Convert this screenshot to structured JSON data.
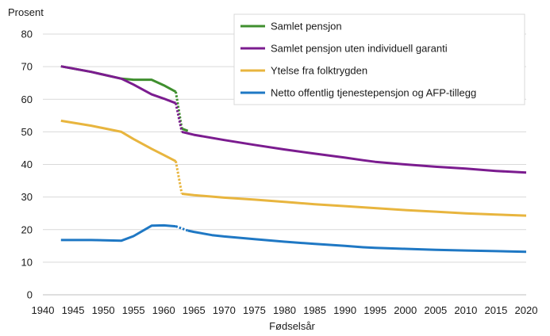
{
  "chart_data": {
    "type": "line",
    "ylabel": "Prosent",
    "xlabel": "Fødselsår",
    "xlim": [
      1940,
      2020
    ],
    "ylim": [
      0,
      80
    ],
    "x_ticks": [
      "1940",
      "1945",
      "1950",
      "1955",
      "1960",
      "1965",
      "1970",
      "1975",
      "1980",
      "1985",
      "1990",
      "1995",
      "2000",
      "2005",
      "2010",
      "2015",
      "2020"
    ],
    "y_ticks": [
      "0",
      "10",
      "20",
      "30",
      "40",
      "50",
      "60",
      "70",
      "80"
    ],
    "grid": "horizontal",
    "legend_position": "top-right",
    "series": [
      {
        "name": "Samlet pensjon",
        "color": "#3f8f2e",
        "solid": [
          [
            1943,
            70.1
          ],
          [
            1948,
            68.4
          ],
          [
            1953,
            66.3
          ],
          [
            1955,
            66.0
          ],
          [
            1958,
            66.0
          ],
          [
            1960,
            64.3
          ],
          [
            1962,
            62.3
          ]
        ],
        "dotted": [
          [
            1962,
            62.3
          ],
          [
            1963,
            51.0
          ]
        ],
        "solid2": [
          [
            1963,
            51.0
          ],
          [
            1964,
            50.3
          ]
        ]
      },
      {
        "name": "Samlet pensjon uten individuell garanti",
        "color": "#7b1c8f",
        "solid": [
          [
            1943,
            70.1
          ],
          [
            1948,
            68.4
          ],
          [
            1953,
            66.3
          ],
          [
            1955,
            64.5
          ],
          [
            1958,
            61.5
          ],
          [
            1960,
            60.2
          ],
          [
            1962,
            58.8
          ]
        ],
        "dotted": [
          [
            1962,
            58.8
          ],
          [
            1963,
            50.0
          ]
        ],
        "solid2": [
          [
            1963,
            50.0
          ],
          [
            1965,
            49.1
          ],
          [
            1970,
            47.5
          ],
          [
            1975,
            46.0
          ],
          [
            1980,
            44.6
          ],
          [
            1985,
            43.3
          ],
          [
            1990,
            42.1
          ],
          [
            1993,
            41.3
          ],
          [
            1995,
            40.8
          ],
          [
            2000,
            40.0
          ],
          [
            2005,
            39.3
          ],
          [
            2010,
            38.7
          ],
          [
            2015,
            38.0
          ],
          [
            2020,
            37.5
          ]
        ]
      },
      {
        "name": "Ytelse fra folktrygden",
        "color": "#e8b53e",
        "solid": [
          [
            1943,
            53.4
          ],
          [
            1948,
            51.9
          ],
          [
            1953,
            50.0
          ],
          [
            1955,
            47.8
          ],
          [
            1958,
            44.8
          ],
          [
            1960,
            42.9
          ],
          [
            1962,
            41.0
          ]
        ],
        "dotted": [
          [
            1962,
            41.0
          ],
          [
            1963,
            31.0
          ]
        ],
        "solid2": [
          [
            1963,
            31.0
          ],
          [
            1965,
            30.6
          ],
          [
            1970,
            29.8
          ],
          [
            1975,
            29.2
          ],
          [
            1980,
            28.5
          ],
          [
            1985,
            27.8
          ],
          [
            1990,
            27.2
          ],
          [
            1995,
            26.6
          ],
          [
            2000,
            26.0
          ],
          [
            2005,
            25.5
          ],
          [
            2010,
            25.0
          ],
          [
            2015,
            24.6
          ],
          [
            2020,
            24.3
          ]
        ]
      },
      {
        "name": "Netto offentlig tjenestepensjon og AFP-tillegg",
        "color": "#1f78c4",
        "solid": [
          [
            1943,
            16.8
          ],
          [
            1948,
            16.8
          ],
          [
            1953,
            16.6
          ],
          [
            1955,
            18.0
          ],
          [
            1958,
            21.2
          ],
          [
            1960,
            21.3
          ],
          [
            1962,
            21.0
          ]
        ],
        "dotted": [
          [
            1962,
            21.0
          ],
          [
            1964,
            19.7
          ]
        ],
        "solid2": [
          [
            1964,
            19.7
          ],
          [
            1965,
            19.3
          ],
          [
            1968,
            18.3
          ],
          [
            1970,
            17.9
          ],
          [
            1975,
            17.1
          ],
          [
            1980,
            16.3
          ],
          [
            1985,
            15.6
          ],
          [
            1990,
            15.0
          ],
          [
            1993,
            14.6
          ],
          [
            1995,
            14.4
          ],
          [
            2000,
            14.1
          ],
          [
            2005,
            13.8
          ],
          [
            2010,
            13.6
          ],
          [
            2015,
            13.4
          ],
          [
            2020,
            13.2
          ]
        ]
      }
    ]
  }
}
